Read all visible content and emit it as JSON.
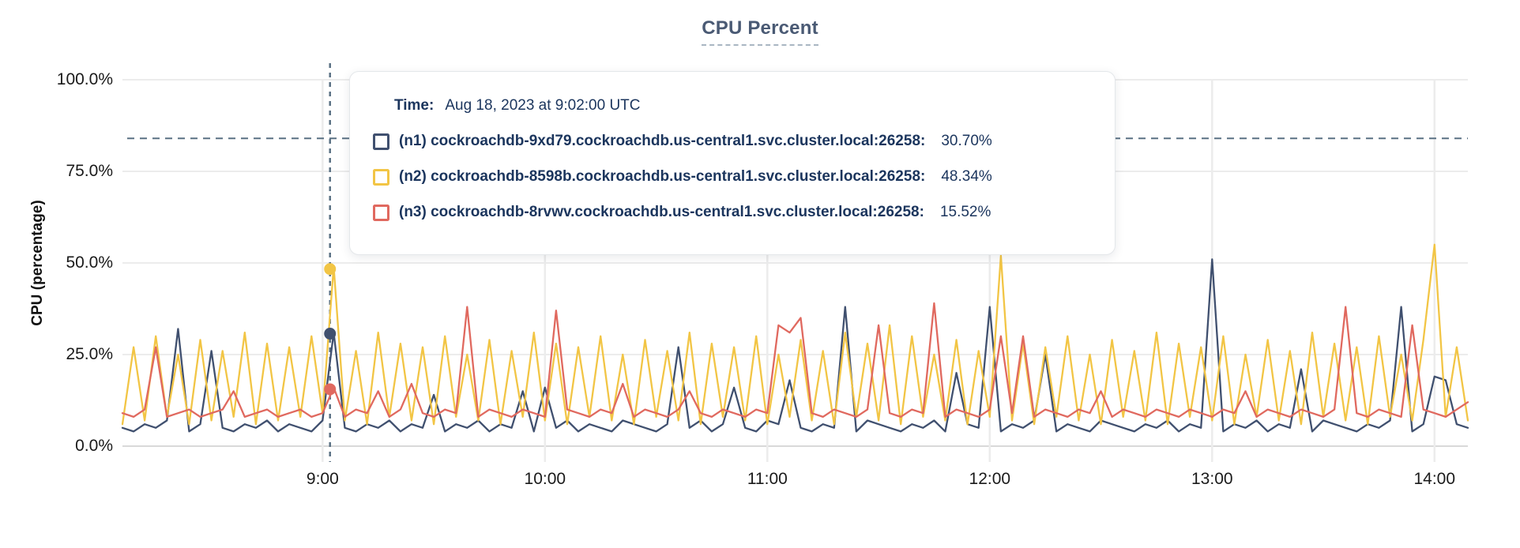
{
  "title": "CPU Percent",
  "tooltip": {
    "time_label": "Time:",
    "time_value": "Aug 18, 2023 at 9:02:00 UTC",
    "rows": [
      {
        "label": "(n1) cockroachdb-9xd79.cockroachdb.us-central1.svc.cluster.local:26258:",
        "value": "30.70%",
        "color": "#40506f"
      },
      {
        "label": "(n2) cockroachdb-8598b.cockroachdb.us-central1.svc.cluster.local:26258:",
        "value": "48.34%",
        "color": "#f2c545"
      },
      {
        "label": "(n3) cockroachdb-8rvwv.cockroachdb.us-central1.svc.cluster.local:26258:",
        "value": "15.52%",
        "color": "#e0695f"
      }
    ]
  },
  "colors": {
    "grid": "#ececec",
    "axis_line": "#d9d9d9",
    "dashed_guides": "#5a7184",
    "title": "#4a5a74",
    "tooltip_text": "#1b355d"
  },
  "chart_data": {
    "type": "line",
    "title": "CPU Percent",
    "xlabel": "",
    "ylabel": "CPU (percentage)",
    "ylim": [
      0,
      100
    ],
    "grid": true,
    "legend_position": "tooltip-overlay",
    "y_ticks": [
      {
        "percent": 0,
        "label": "0.0%"
      },
      {
        "percent": 25,
        "label": "25.0%"
      },
      {
        "percent": 50,
        "label": "50.0%"
      },
      {
        "percent": 75,
        "label": "75.0%"
      },
      {
        "percent": 100,
        "label": "100.0%"
      }
    ],
    "x_ticks": [
      {
        "minutes": 540,
        "label": "9:00"
      },
      {
        "minutes": 600,
        "label": "10:00"
      },
      {
        "minutes": 660,
        "label": "11:00"
      },
      {
        "minutes": 720,
        "label": "12:00"
      },
      {
        "minutes": 780,
        "label": "13:00"
      },
      {
        "minutes": 840,
        "label": "14:00"
      }
    ],
    "x_start_minutes": 486,
    "x_step_minutes": 3,
    "threshold_percent": 84,
    "hover": {
      "minutes": 542,
      "time": "Aug 18, 2023 at 9:02:00 UTC",
      "points": [
        {
          "series_index": 0,
          "percent": 30.7
        },
        {
          "series_index": 1,
          "percent": 48.34
        },
        {
          "series_index": 2,
          "percent": 15.52
        }
      ]
    },
    "series": [
      {
        "name": "(n1) cockroachdb-9xd79.cockroachdb.us-central1.svc.cluster.local:26258",
        "short": "n1",
        "color": "#40506f",
        "values": [
          5,
          4,
          6,
          5,
          7,
          32,
          4,
          6,
          26,
          5,
          4,
          6,
          5,
          7,
          4,
          6,
          5,
          4,
          7,
          31,
          5,
          4,
          6,
          5,
          7,
          4,
          6,
          5,
          14,
          4,
          6,
          5,
          7,
          4,
          6,
          5,
          15,
          4,
          16,
          5,
          7,
          4,
          6,
          5,
          4,
          7,
          6,
          5,
          4,
          6,
          27,
          5,
          7,
          4,
          6,
          16,
          5,
          4,
          7,
          6,
          18,
          5,
          4,
          6,
          5,
          38,
          4,
          7,
          6,
          5,
          4,
          6,
          5,
          7,
          4,
          20,
          6,
          5,
          38,
          4,
          6,
          5,
          7,
          25,
          4,
          6,
          5,
          4,
          7,
          6,
          5,
          4,
          6,
          5,
          7,
          4,
          6,
          5,
          51,
          4,
          6,
          5,
          7,
          4,
          6,
          5,
          21,
          4,
          7,
          6,
          5,
          4,
          6,
          5,
          7,
          38,
          4,
          6,
          19,
          18,
          6,
          5
        ]
      },
      {
        "name": "(n2) cockroachdb-8598b.cockroachdb.us-central1.svc.cluster.local:26258",
        "short": "n2",
        "color": "#f2c545",
        "values": [
          6,
          27,
          7,
          30,
          8,
          25,
          6,
          29,
          7,
          26,
          8,
          31,
          6,
          28,
          7,
          27,
          8,
          30,
          9,
          49,
          7,
          26,
          6,
          31,
          8,
          28,
          7,
          27,
          6,
          30,
          8,
          25,
          7,
          29,
          6,
          26,
          8,
          31,
          7,
          28,
          6,
          27,
          8,
          30,
          7,
          25,
          6,
          29,
          8,
          26,
          7,
          31,
          6,
          28,
          8,
          27,
          7,
          30,
          6,
          25,
          8,
          29,
          7,
          26,
          6,
          31,
          8,
          28,
          7,
          33,
          6,
          30,
          8,
          25,
          7,
          29,
          6,
          26,
          8,
          52,
          7,
          28,
          6,
          27,
          8,
          30,
          7,
          25,
          6,
          29,
          8,
          26,
          7,
          31,
          6,
          28,
          8,
          27,
          7,
          30,
          6,
          25,
          8,
          29,
          7,
          26,
          6,
          31,
          8,
          28,
          7,
          27,
          6,
          30,
          8,
          25,
          7,
          29,
          55,
          8,
          27,
          7
        ]
      },
      {
        "name": "(n3) cockroachdb-8rvwv.cockroachdb.us-central1.svc.cluster.local:26258",
        "short": "n3",
        "color": "#e0695f",
        "values": [
          9,
          8,
          10,
          27,
          8,
          9,
          10,
          8,
          9,
          10,
          15,
          8,
          9,
          10,
          8,
          9,
          10,
          8,
          9,
          16,
          8,
          10,
          9,
          15,
          8,
          10,
          17,
          9,
          8,
          10,
          9,
          38,
          8,
          10,
          9,
          8,
          10,
          9,
          8,
          37,
          10,
          9,
          8,
          10,
          9,
          17,
          8,
          10,
          9,
          8,
          10,
          15,
          9,
          8,
          10,
          9,
          8,
          10,
          9,
          33,
          31,
          35,
          9,
          8,
          10,
          9,
          8,
          10,
          33,
          9,
          8,
          10,
          9,
          39,
          8,
          10,
          9,
          8,
          10,
          30,
          9,
          30,
          8,
          10,
          9,
          8,
          10,
          9,
          15,
          8,
          10,
          9,
          8,
          10,
          9,
          8,
          10,
          9,
          8,
          10,
          9,
          15,
          8,
          10,
          9,
          8,
          10,
          9,
          8,
          10,
          38,
          9,
          8,
          10,
          9,
          8,
          33,
          10,
          9,
          8,
          10,
          12
        ]
      }
    ]
  }
}
